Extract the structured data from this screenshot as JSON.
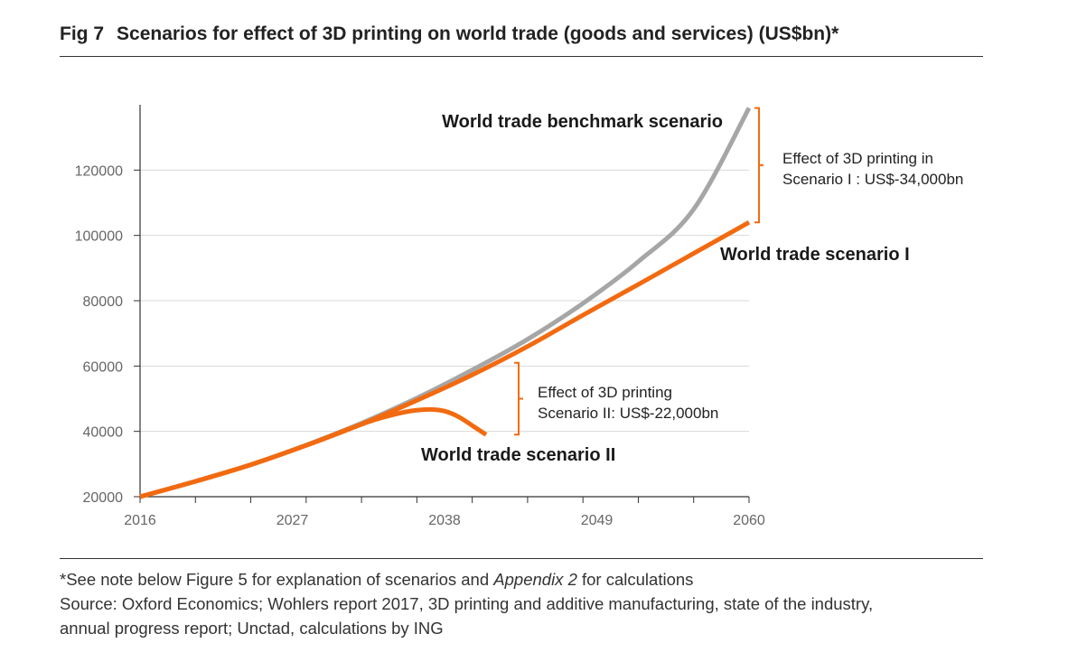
{
  "header": {
    "fig_number": "Fig 7",
    "title": "Scenarios for effect of 3D printing on world trade (goods and services) (US$bn)*"
  },
  "footer": {
    "note_prefix": "*See note below Figure 5 for explanation of scenarios and ",
    "note_italic": "Appendix 2",
    "note_suffix": " for calculations",
    "source_line1": "Source: Oxford Economics; Wohlers report 2017, 3D printing and additive manufacturing, state of the industry,",
    "source_line2": "annual progress report; Unctad, calculations by ING"
  },
  "colors": {
    "benchmark": "#a6a6a6",
    "scenario": "#f26a10",
    "grid": "#d9d9d9",
    "axis": "#333333",
    "tick_text": "#666666"
  },
  "chart_data": {
    "type": "line",
    "title": "Scenarios for effect of 3D printing on world trade (goods and services) (US$bn)*",
    "xlabel": "",
    "ylabel": "",
    "xlim": [
      2016,
      2060
    ],
    "ylim": [
      20000,
      140000
    ],
    "x_ticks": [
      2016,
      2027,
      2038,
      2049,
      2060
    ],
    "y_ticks": [
      20000,
      40000,
      60000,
      80000,
      100000,
      120000
    ],
    "grid": "horizontal",
    "legend": "none",
    "series": [
      {
        "key": "benchmark",
        "name": "World trade benchmark scenario",
        "color": "#a6a6a6",
        "x": [
          2016,
          2020,
          2024,
          2028,
          2032,
          2036,
          2040,
          2044,
          2048,
          2052,
          2056,
          2060
        ],
        "y": [
          20000,
          24700,
          29800,
          35800,
          42500,
          50200,
          58800,
          68200,
          79200,
          92000,
          108000,
          139000
        ]
      },
      {
        "key": "scenario1",
        "name": "World trade scenario I",
        "color": "#f26a10",
        "x": [
          2016,
          2020,
          2024,
          2028,
          2032,
          2036,
          2040,
          2044,
          2048,
          2052,
          2056,
          2060
        ],
        "y": [
          20000,
          24700,
          29800,
          35700,
          42200,
          49500,
          57300,
          66000,
          75600,
          85000,
          94500,
          104000
        ]
      },
      {
        "key": "scenario2",
        "name": "World trade scenario II",
        "color": "#f26a10",
        "x": [
          2016,
          2020,
          2024,
          2028,
          2031,
          2033,
          2035,
          2036,
          2037,
          2038,
          2039,
          2040,
          2041
        ],
        "y": [
          20000,
          24700,
          29800,
          35700,
          40600,
          43600,
          45800,
          46500,
          46700,
          46200,
          44500,
          41800,
          39000
        ]
      }
    ],
    "annotations": [
      {
        "key": "label_benchmark",
        "text": "World trade benchmark scenario"
      },
      {
        "key": "label_s1",
        "text": "World trade scenario I"
      },
      {
        "key": "label_s2",
        "text": "World trade scenario II"
      },
      {
        "key": "effect1",
        "lines": [
          "Effect of 3D printing in",
          "Scenario I : US$-34,000bn"
        ],
        "bracket_y": [
          104000,
          139000
        ]
      },
      {
        "key": "effect2",
        "lines": [
          "Effect of 3D printing",
          "Scenario II: US$-22,000bn"
        ],
        "bracket_y": [
          39000,
          61000
        ]
      }
    ]
  }
}
